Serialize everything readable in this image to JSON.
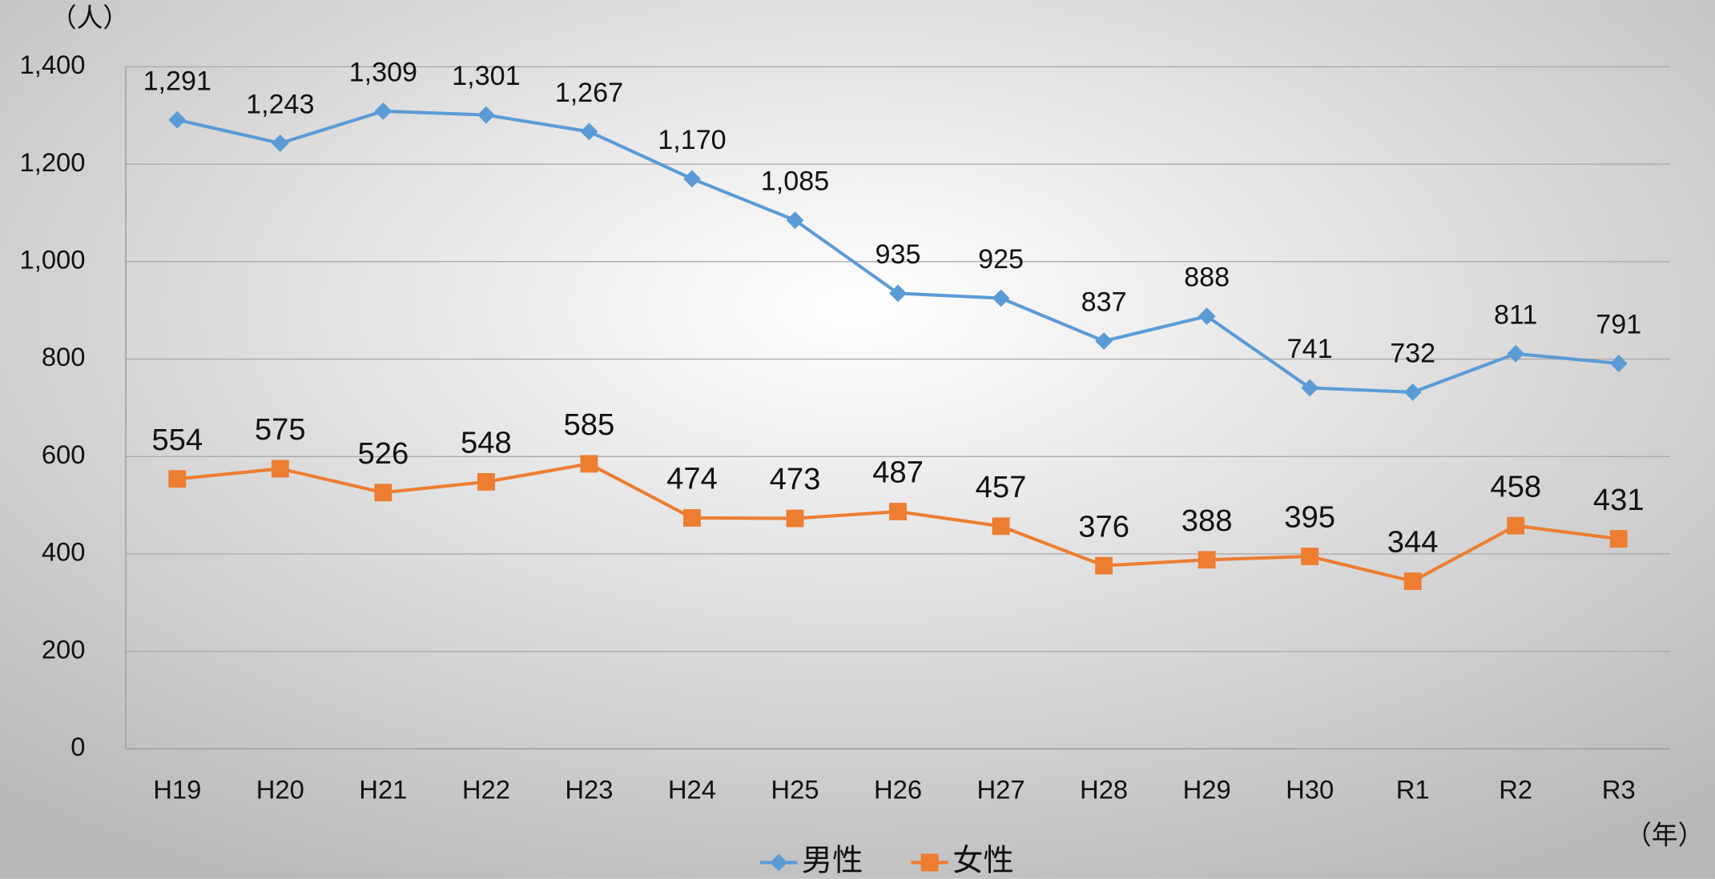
{
  "chart_data": {
    "type": "line",
    "y_label": "（人）",
    "x_label": "（年）",
    "categories": [
      "H19",
      "H20",
      "H21",
      "H22",
      "H23",
      "H24",
      "H25",
      "H26",
      "H27",
      "H28",
      "H29",
      "H30",
      "R1",
      "R2",
      "R3"
    ],
    "series": [
      {
        "name": "男性",
        "color": "#5b9bd5",
        "marker": "diamond",
        "values": [
          1291,
          1243,
          1309,
          1301,
          1267,
          1170,
          1085,
          935,
          925,
          837,
          888,
          741,
          732,
          811,
          791
        ],
        "value_labels": [
          "1,291",
          "1,243",
          "1,309",
          "1,301",
          "1,267",
          "1,170",
          "1,085",
          "935",
          "925",
          "837",
          "888",
          "741",
          "732",
          "811",
          "791"
        ]
      },
      {
        "name": "女性",
        "color": "#ed7d31",
        "marker": "square",
        "values": [
          554,
          575,
          526,
          548,
          585,
          474,
          473,
          487,
          457,
          376,
          388,
          395,
          344,
          458,
          431
        ]
      }
    ],
    "ylim": [
      0,
      1400
    ],
    "yticks": [
      0,
      200,
      400,
      600,
      800,
      {
        "value": 1000,
        "label": "1,000"
      },
      {
        "value": 1200,
        "label": "1,200"
      },
      {
        "value": 1400,
        "label": "1,400"
      }
    ],
    "grid": true,
    "legend": "bottom"
  }
}
